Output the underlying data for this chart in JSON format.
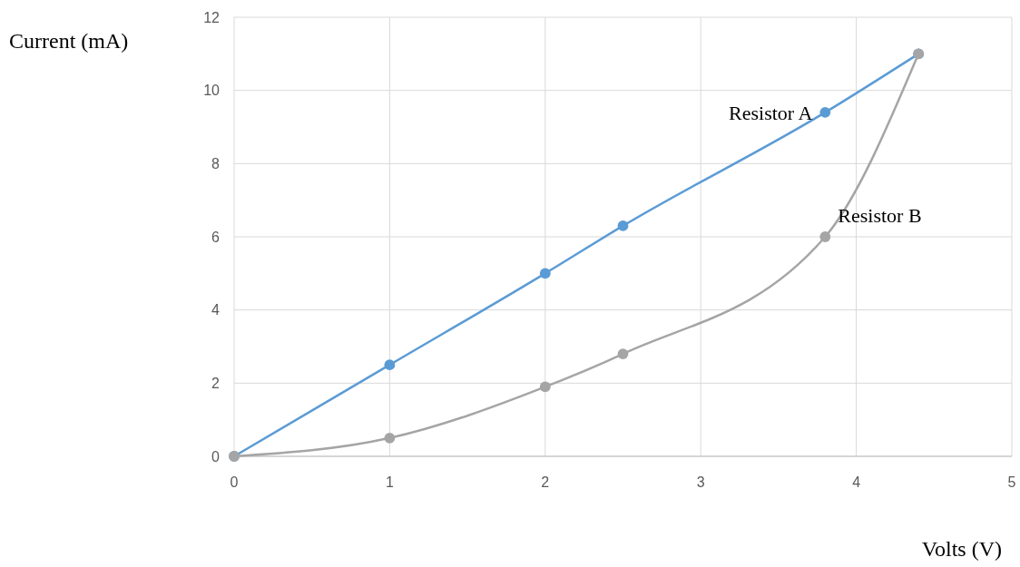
{
  "chart_data": {
    "type": "line",
    "xlabel": "Volts (V)",
    "ylabel": "Current (mA)",
    "xlim": [
      0,
      5
    ],
    "xticks": [
      0,
      1,
      2,
      3,
      4,
      5
    ],
    "ylim": [
      0,
      12
    ],
    "yticks": [
      0,
      2,
      4,
      6,
      8,
      10,
      12
    ],
    "grid": true,
    "marker": "circle",
    "line_style": "solid",
    "series": [
      {
        "name": "Resistor A",
        "color": "#5b9bd5",
        "x": [
          0,
          1,
          2,
          2.5,
          3.8,
          4.4
        ],
        "values": [
          0,
          2.5,
          5,
          6.3,
          9.4,
          11
        ]
      },
      {
        "name": "Resistor B",
        "color": "#a5a5a5",
        "x": [
          0,
          1,
          2,
          2.5,
          3.8,
          4.4
        ],
        "values": [
          0,
          0.5,
          1.9,
          2.8,
          6,
          11
        ]
      }
    ]
  }
}
